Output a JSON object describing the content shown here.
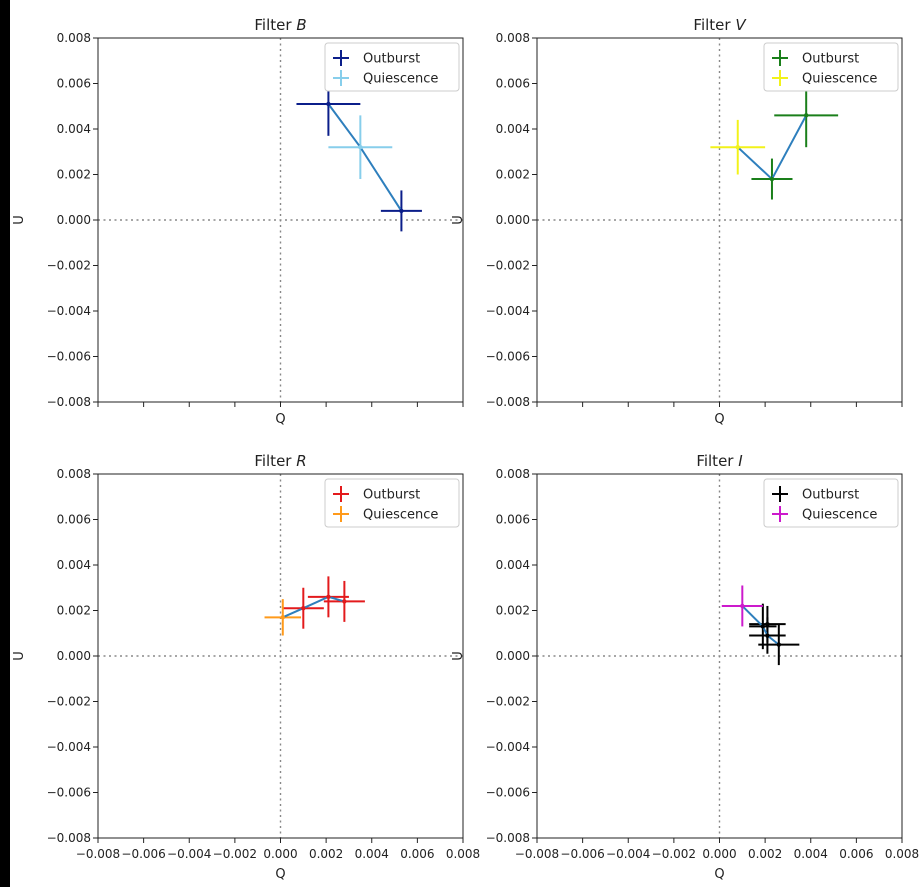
{
  "chart_data": [
    {
      "type": "scatter",
      "title_prefix": "Filter ",
      "title_filter": "B",
      "xlabel": "Q",
      "ylabel": "U",
      "xlim": [
        -0.008,
        0.008
      ],
      "ylim": [
        -0.008,
        0.008
      ],
      "grid": false,
      "zero_lines": true,
      "legend_position": "top-right",
      "show_x_ticklabels": false,
      "series": [
        {
          "name": "Outburst",
          "color": "#0b1e8a",
          "points": [
            {
              "x": 0.0021,
              "y": 0.0051,
              "xerr": 0.0014,
              "yerr": 0.0014
            },
            {
              "x": 0.0053,
              "y": 0.0004,
              "xerr": 0.0009,
              "yerr": 0.0009
            }
          ]
        },
        {
          "name": "Quiescence",
          "color": "#87ceeb",
          "points": [
            {
              "x": 0.0035,
              "y": 0.0032,
              "xerr": 0.0014,
              "yerr": 0.0014
            }
          ]
        }
      ],
      "connector": {
        "color": "#2e7fbd",
        "points": [
          [
            0.0021,
            0.0051
          ],
          [
            0.0035,
            0.0032
          ],
          [
            0.0053,
            0.0004
          ]
        ]
      }
    },
    {
      "type": "scatter",
      "title_prefix": "Filter ",
      "title_filter": "V",
      "xlabel": "Q",
      "ylabel": "U",
      "xlim": [
        -0.008,
        0.008
      ],
      "ylim": [
        -0.008,
        0.008
      ],
      "grid": false,
      "zero_lines": true,
      "legend_position": "top-right",
      "show_x_ticklabels": false,
      "series": [
        {
          "name": "Outburst",
          "color": "#1a7f1a",
          "points": [
            {
              "x": 0.0023,
              "y": 0.0018,
              "xerr": 0.0009,
              "yerr": 0.0009
            },
            {
              "x": 0.0038,
              "y": 0.0046,
              "xerr": 0.0014,
              "yerr": 0.0014
            }
          ]
        },
        {
          "name": "Quiescence",
          "color": "#f2f21a",
          "points": [
            {
              "x": 0.0008,
              "y": 0.0032,
              "xerr": 0.0012,
              "yerr": 0.0012
            }
          ]
        }
      ],
      "connector": {
        "color": "#2e7fbd",
        "points": [
          [
            0.0008,
            0.0032
          ],
          [
            0.0023,
            0.0018
          ],
          [
            0.0038,
            0.0046
          ]
        ]
      }
    },
    {
      "type": "scatter",
      "title_prefix": "Filter ",
      "title_filter": "R",
      "xlabel": "Q",
      "ylabel": "U",
      "xlim": [
        -0.008,
        0.008
      ],
      "ylim": [
        -0.008,
        0.008
      ],
      "grid": false,
      "zero_lines": true,
      "legend_position": "top-right",
      "show_x_ticklabels": true,
      "series": [
        {
          "name": "Outburst",
          "color": "#e31a1c",
          "points": [
            {
              "x": 0.001,
              "y": 0.0021,
              "xerr": 0.0009,
              "yerr": 0.0009
            },
            {
              "x": 0.0021,
              "y": 0.0026,
              "xerr": 0.0009,
              "yerr": 0.0009
            },
            {
              "x": 0.0028,
              "y": 0.0024,
              "xerr": 0.0009,
              "yerr": 0.0009
            }
          ]
        },
        {
          "name": "Quiescence",
          "color": "#ff9a1a",
          "points": [
            {
              "x": 0.0001,
              "y": 0.0017,
              "xerr": 0.0008,
              "yerr": 0.0008
            }
          ]
        }
      ],
      "connector": {
        "color": "#2e7fbd",
        "points": [
          [
            0.0001,
            0.0017
          ],
          [
            0.001,
            0.0021
          ],
          [
            0.0021,
            0.0026
          ],
          [
            0.0028,
            0.0024
          ]
        ]
      }
    },
    {
      "type": "scatter",
      "title_prefix": "Filter ",
      "title_filter": "I",
      "xlabel": "Q",
      "ylabel": "U",
      "xlim": [
        -0.008,
        0.008
      ],
      "ylim": [
        -0.008,
        0.008
      ],
      "grid": false,
      "zero_lines": true,
      "legend_position": "top-right",
      "show_x_ticklabels": true,
      "series": [
        {
          "name": "Outburst",
          "color": "#000000",
          "points": [
            {
              "x": 0.0019,
              "y": 0.0013,
              "xerr": 0.0006,
              "yerr": 0.001
            },
            {
              "x": 0.0021,
              "y": 0.0009,
              "xerr": 0.0008,
              "yerr": 0.0008
            },
            {
              "x": 0.0021,
              "y": 0.0014,
              "xerr": 0.0008,
              "yerr": 0.0008
            },
            {
              "x": 0.0026,
              "y": 0.0005,
              "xerr": 0.0009,
              "yerr": 0.0009
            }
          ]
        },
        {
          "name": "Quiescence",
          "color": "#cc1acc",
          "points": [
            {
              "x": 0.001,
              "y": 0.0022,
              "xerr": 0.0009,
              "yerr": 0.0009
            }
          ]
        }
      ],
      "connector": {
        "color": "#2e7fbd",
        "points": [
          [
            0.001,
            0.0022
          ],
          [
            0.0019,
            0.0013
          ],
          [
            0.0021,
            0.0009
          ],
          [
            0.0026,
            0.0005
          ]
        ]
      }
    }
  ],
  "axis": {
    "y_ticks": [
      "-0.008",
      "-0.006",
      "-0.004",
      "-0.002",
      "0.000",
      "0.002",
      "0.004",
      "0.006",
      "0.008"
    ],
    "x_ticks": [
      "-0.008",
      "-0.006",
      "-0.004",
      "-0.002",
      "0.000",
      "0.002",
      "0.004",
      "0.006",
      "0.008"
    ]
  }
}
